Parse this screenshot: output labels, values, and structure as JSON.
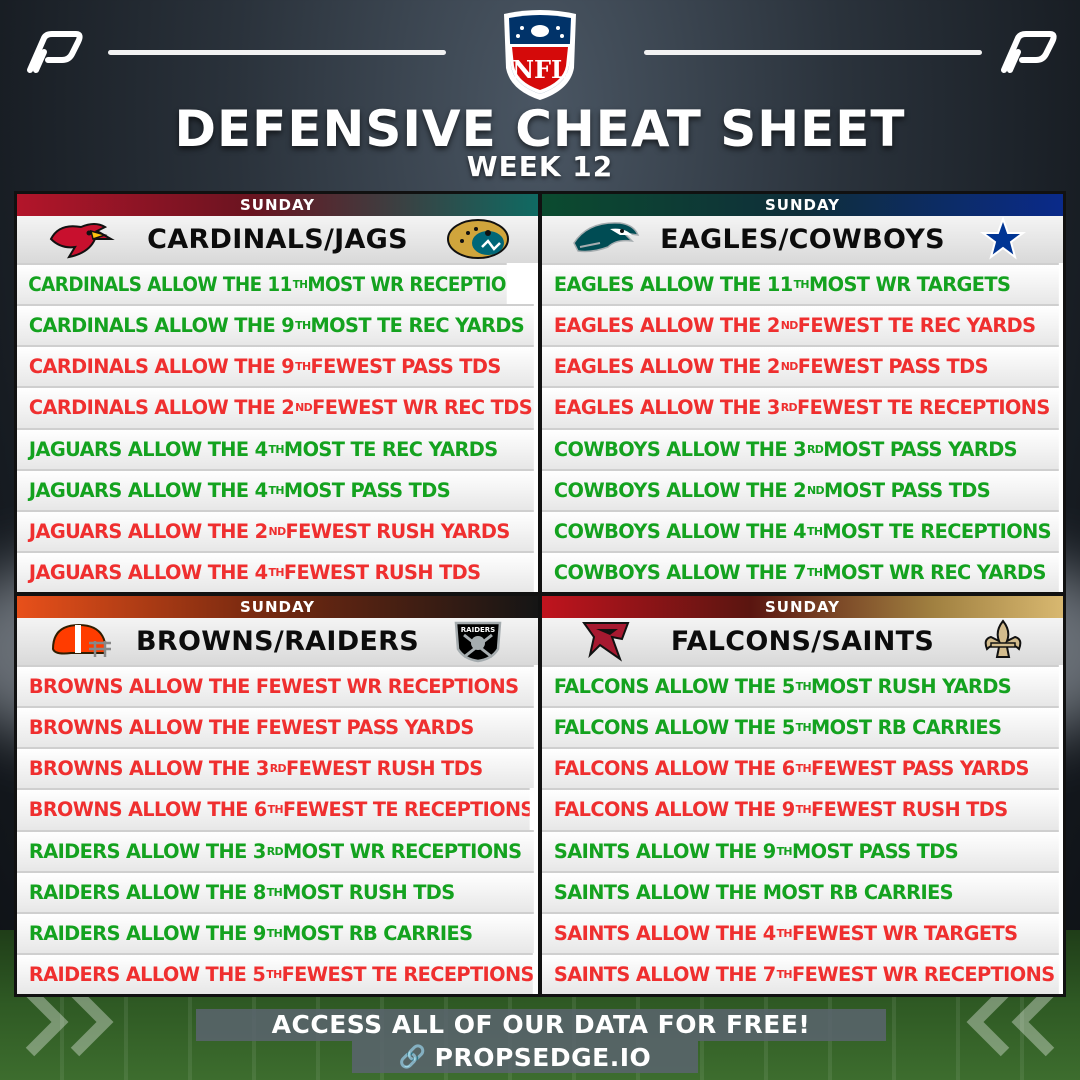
{
  "header": {
    "title": "DEFENSIVE CHEAT SHEET",
    "subtitle": "WEEK 12"
  },
  "colors": {
    "good": "#14a21f",
    "bad": "#ef2f2f"
  },
  "panels": [
    {
      "day": "SUNDAY",
      "matchup": "CARDINALS/JAGS",
      "left_logo": "cardinals-logo-icon",
      "right_logo": "jaguars-logo-icon",
      "band_gradient": "linear-gradient(90deg,#b3152a 0%,#6a1420 45%,#0f6a62 100%)",
      "rows": [
        {
          "pre": "CARDINALS ALLOW THE 11",
          "sup": "TH",
          "post": " MOST WR RECEPTIONS",
          "tone": "good"
        },
        {
          "pre": "CARDINALS ALLOW THE 9",
          "sup": "TH",
          "post": " MOST TE REC YARDS",
          "tone": "good"
        },
        {
          "pre": "CARDINALS ALLOW THE 9",
          "sup": "TH",
          "post": " FEWEST PASS TDS",
          "tone": "bad"
        },
        {
          "pre": "CARDINALS ALLOW THE 2",
          "sup": "ND",
          "post": " FEWEST WR REC TDS",
          "tone": "bad"
        },
        {
          "pre": "JAGUARS ALLOW THE 4",
          "sup": "TH",
          "post": " MOST TE REC YARDS",
          "tone": "good"
        },
        {
          "pre": "JAGUARS ALLOW THE 4",
          "sup": "TH",
          "post": " MOST PASS TDS",
          "tone": "good"
        },
        {
          "pre": "JAGUARS ALLOW THE 2",
          "sup": "ND",
          "post": " FEWEST RUSH YARDS",
          "tone": "bad"
        },
        {
          "pre": "JAGUARS ALLOW THE 4",
          "sup": "TH",
          "post": " FEWEST RUSH TDS",
          "tone": "bad"
        }
      ]
    },
    {
      "day": "SUNDAY",
      "matchup": "EAGLES/COWBOYS",
      "left_logo": "eagles-logo-icon",
      "right_logo": "cowboys-star-icon",
      "band_gradient": "linear-gradient(90deg,#0b4b2f 0%,#0f2e3a 50%,#0a2a8a 100%)",
      "rows": [
        {
          "pre": "EAGLES ALLOW THE 11",
          "sup": "TH",
          "post": " MOST WR TARGETS",
          "tone": "good"
        },
        {
          "pre": "EAGLES ALLOW THE 2",
          "sup": "ND",
          "post": " FEWEST TE REC YARDS",
          "tone": "bad"
        },
        {
          "pre": "EAGLES ALLOW THE 2",
          "sup": "ND",
          "post": " FEWEST PASS TDS",
          "tone": "bad"
        },
        {
          "pre": "EAGLES ALLOW THE 3",
          "sup": "RD",
          "post": " FEWEST TE RECEPTIONS",
          "tone": "bad"
        },
        {
          "pre": "COWBOYS ALLOW THE 3",
          "sup": "RD",
          "post": " MOST PASS YARDS",
          "tone": "good"
        },
        {
          "pre": "COWBOYS ALLOW THE 2",
          "sup": "ND",
          "post": " MOST PASS TDS",
          "tone": "good"
        },
        {
          "pre": "COWBOYS ALLOW THE 4",
          "sup": "TH",
          "post": " MOST TE RECEPTIONS",
          "tone": "good"
        },
        {
          "pre": "COWBOYS ALLOW THE 7",
          "sup": "TH",
          "post": " MOST WR REC YARDS",
          "tone": "good"
        }
      ]
    },
    {
      "day": "SUNDAY",
      "matchup": "BROWNS/RAIDERS",
      "left_logo": "browns-helmet-icon",
      "right_logo": "raiders-shield-icon",
      "band_gradient": "linear-gradient(90deg,#e8501a 0%,#7a2a10 45%,#151515 100%)",
      "rows": [
        {
          "pre": "BROWNS ALLOW THE FEWEST WR RECEPTIONS",
          "sup": "",
          "post": "",
          "tone": "bad"
        },
        {
          "pre": "BROWNS ALLOW THE FEWEST PASS YARDS",
          "sup": "",
          "post": "",
          "tone": "bad"
        },
        {
          "pre": "BROWNS ALLOW THE 3",
          "sup": "RD",
          "post": " FEWEST RUSH TDS",
          "tone": "bad"
        },
        {
          "pre": "BROWNS ALLOW THE 6",
          "sup": "TH",
          "post": " FEWEST TE RECEPTIONS",
          "tone": "bad"
        },
        {
          "pre": "RAIDERS ALLOW THE 3",
          "sup": "RD",
          "post": " MOST WR RECEPTIONS",
          "tone": "good"
        },
        {
          "pre": "RAIDERS ALLOW THE 8",
          "sup": "TH",
          "post": " MOST RUSH TDS",
          "tone": "good"
        },
        {
          "pre": "RAIDERS ALLOW THE 9",
          "sup": "TH",
          "post": " MOST RB CARRIES",
          "tone": "good"
        },
        {
          "pre": "RAIDERS ALLOW THE 5",
          "sup": "TH",
          "post": " FEWEST TE RECEPTIONS",
          "tone": "bad"
        }
      ]
    },
    {
      "day": "SUNDAY",
      "matchup": "FALCONS/SAINTS",
      "left_logo": "falcons-logo-icon",
      "right_logo": "saints-fleur-de-lis-icon",
      "band_gradient": "linear-gradient(90deg,#c0141e 0%,#5a1510 40%,#a08040 75%,#d8b870 100%)",
      "rows": [
        {
          "pre": "FALCONS ALLOW THE 5",
          "sup": "TH",
          "post": " MOST RUSH YARDS",
          "tone": "good"
        },
        {
          "pre": "FALCONS ALLOW THE 5",
          "sup": "TH",
          "post": " MOST RB CARRIES",
          "tone": "good"
        },
        {
          "pre": "FALCONS ALLOW THE 6",
          "sup": "TH",
          "post": " FEWEST PASS YARDS",
          "tone": "bad"
        },
        {
          "pre": "FALCONS ALLOW THE 9",
          "sup": "TH",
          "post": " FEWEST RUSH TDS",
          "tone": "bad"
        },
        {
          "pre": "SAINTS ALLOW THE 9",
          "sup": "TH",
          "post": " MOST PASS TDS",
          "tone": "good"
        },
        {
          "pre": "SAINTS ALLOW THE MOST RB CARRIES",
          "sup": "",
          "post": "",
          "tone": "good"
        },
        {
          "pre": "SAINTS ALLOW THE 4",
          "sup": "TH",
          "post": " FEWEST WR TARGETS",
          "tone": "bad"
        },
        {
          "pre": "SAINTS ALLOW THE 7",
          "sup": "TH",
          "post": " FEWEST WR RECEPTIONS",
          "tone": "bad"
        }
      ]
    }
  ],
  "footer": {
    "cta": "ACCESS ALL OF OUR DATA FOR FREE!",
    "site": "PROPSEDGE.IO",
    "link_icon": "link-icon"
  }
}
